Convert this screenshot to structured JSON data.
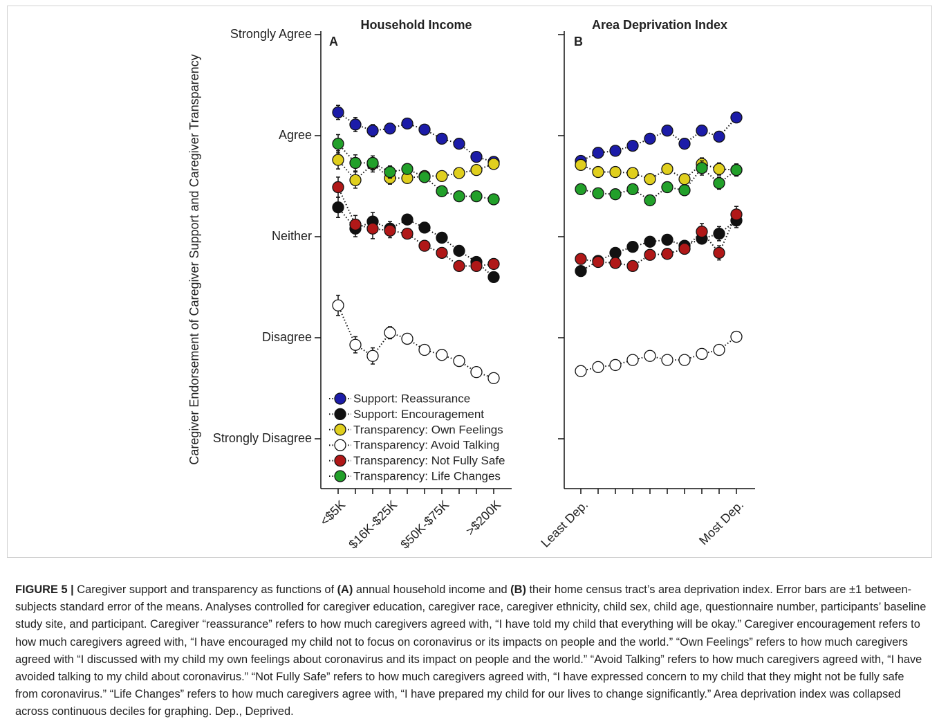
{
  "chart_data": [
    {
      "type": "line",
      "title": "Household Income",
      "panel": "A",
      "ylabel": "Caregiver Endorsement of Caregiver Support and Caregiver Transparency",
      "categories": [
        "<$5K",
        null,
        null,
        "$16K-$25K",
        null,
        null,
        "$50K-$75K",
        null,
        null,
        ">$200K"
      ],
      "ylim": [
        0.5,
        5
      ],
      "yticks": [
        {
          "value": 1,
          "label": "Strongly Disagree"
        },
        {
          "value": 2,
          "label": "Disagree"
        },
        {
          "value": 3,
          "label": "Neither"
        },
        {
          "value": 4,
          "label": "Agree"
        },
        {
          "value": 5,
          "label": "Strongly Agree"
        }
      ],
      "legend": "lower left",
      "series": [
        {
          "name": "Support: Reassurance",
          "color": "#1c1ca8",
          "values": [
            4.23,
            4.11,
            4.05,
            4.07,
            4.12,
            4.06,
            3.97,
            3.92,
            3.79,
            3.74
          ],
          "errors": [
            0.07,
            0.07,
            0.06,
            0.05,
            0.05,
            0.05,
            0.05,
            0.05,
            0.05,
            0.05
          ]
        },
        {
          "name": "Support: Encouragement",
          "color": "#111111",
          "values": [
            3.29,
            3.08,
            3.15,
            3.08,
            3.17,
            3.09,
            2.99,
            2.86,
            2.75,
            2.6
          ],
          "errors": [
            0.1,
            0.08,
            0.09,
            0.07,
            0.05,
            0.05,
            0.05,
            0.05,
            0.05,
            0.05
          ]
        },
        {
          "name": "Transparency: Own Feelings",
          "color": "#e0cf1e",
          "values": [
            3.76,
            3.56,
            3.72,
            3.58,
            3.58,
            3.6,
            3.6,
            3.63,
            3.66,
            3.72
          ],
          "errors": [
            0.09,
            0.08,
            0.08,
            0.06,
            0.05,
            0.05,
            0.05,
            0.05,
            0.05,
            0.05
          ]
        },
        {
          "name": "Transparency: Avoid Talking",
          "color": "#ffffff",
          "values": [
            2.32,
            1.93,
            1.82,
            2.05,
            1.99,
            1.88,
            1.83,
            1.77,
            1.66,
            1.6
          ],
          "errors": [
            0.1,
            0.08,
            0.08,
            0.06,
            0.05,
            0.05,
            0.05,
            0.05,
            0.05,
            0.05
          ]
        },
        {
          "name": "Transparency: Not Fully Safe",
          "color": "#b01818",
          "values": [
            3.49,
            3.12,
            3.08,
            3.06,
            3.03,
            2.91,
            2.84,
            2.71,
            2.71,
            2.73
          ],
          "errors": [
            0.1,
            0.09,
            0.1,
            0.07,
            0.05,
            0.05,
            0.05,
            0.05,
            0.05,
            0.05
          ]
        },
        {
          "name": "Transparency: Life Changes",
          "color": "#22a02a",
          "values": [
            3.92,
            3.73,
            3.73,
            3.64,
            3.67,
            3.59,
            3.45,
            3.4,
            3.4,
            3.37
          ],
          "errors": [
            0.09,
            0.08,
            0.07,
            0.06,
            0.05,
            0.05,
            0.05,
            0.05,
            0.05,
            0.05
          ]
        }
      ]
    },
    {
      "type": "line",
      "title": "Area Deprivation Index",
      "panel": "B",
      "categories": [
        "Least Dep.",
        null,
        null,
        null,
        null,
        null,
        null,
        null,
        null,
        "Most Dep."
      ],
      "ylim": [
        0.5,
        5
      ],
      "yticks": [
        1,
        2,
        3,
        4,
        5
      ],
      "series": [
        {
          "color": "#1c1ca8",
          "values": [
            3.75,
            3.83,
            3.85,
            3.9,
            3.97,
            4.05,
            3.92,
            4.05,
            3.99,
            4.18
          ],
          "errors": [
            0.05,
            0.05,
            0.05,
            0.05,
            0.05,
            0.05,
            0.05,
            0.05,
            0.05,
            0.05
          ]
        },
        {
          "color": "#111111",
          "values": [
            2.66,
            2.76,
            2.84,
            2.9,
            2.95,
            2.97,
            2.91,
            2.98,
            3.03,
            3.16
          ],
          "errors": [
            0.05,
            0.05,
            0.05,
            0.05,
            0.05,
            0.05,
            0.05,
            0.05,
            0.07,
            0.07
          ]
        },
        {
          "color": "#e0cf1e",
          "values": [
            3.71,
            3.64,
            3.64,
            3.63,
            3.57,
            3.67,
            3.57,
            3.72,
            3.67,
            3.66
          ],
          "errors": [
            0.05,
            0.05,
            0.05,
            0.05,
            0.05,
            0.05,
            0.05,
            0.06,
            0.06,
            0.06
          ]
        },
        {
          "color": "#ffffff",
          "values": [
            1.67,
            1.71,
            1.73,
            1.78,
            1.82,
            1.78,
            1.78,
            1.84,
            1.88,
            2.01
          ],
          "errors": [
            0.05,
            0.05,
            0.05,
            0.05,
            0.05,
            0.05,
            0.05,
            0.05,
            0.05,
            0.05
          ]
        },
        {
          "color": "#b01818",
          "values": [
            2.78,
            2.75,
            2.74,
            2.71,
            2.82,
            2.83,
            2.88,
            3.05,
            2.84,
            3.22
          ],
          "errors": [
            0.05,
            0.05,
            0.05,
            0.05,
            0.05,
            0.05,
            0.05,
            0.08,
            0.07,
            0.08
          ]
        },
        {
          "color": "#22a02a",
          "values": [
            3.47,
            3.43,
            3.42,
            3.47,
            3.36,
            3.49,
            3.46,
            3.68,
            3.53,
            3.66
          ],
          "errors": [
            0.05,
            0.05,
            0.05,
            0.05,
            0.05,
            0.05,
            0.05,
            0.07,
            0.06,
            0.06
          ]
        }
      ]
    }
  ],
  "caption": [
    {
      "text": "FIGURE 5 |",
      "bold": true
    },
    {
      "text": " Caregiver support and transparency as functions of "
    },
    {
      "text": "(A)",
      "bold": true
    },
    {
      "text": " annual household income and "
    },
    {
      "text": "(B)",
      "bold": true
    },
    {
      "text": " their home census tract’s area deprivation index. Error bars are ±1 between-subjects standard error of the means. Analyses controlled for caregiver education, caregiver race, caregiver ethnicity, child sex, child age, questionnaire number, participants’ baseline study site, and participant. Caregiver “reassurance” refers to how much caregivers agreed with, “I have told my child that everything will be okay.” Caregiver encouragement refers to how much caregivers agreed with, “I have encouraged my child not to focus on coronavirus or its impacts on people and the world.” “Own Feelings” refers to how much caregivers agreed with “I discussed with my child my own feelings about coronavirus and its impact on people and the world.” “Avoid Talking” refers to how much caregivers agreed with, “I have avoided talking to my child about coronavirus.” “Not Fully Safe” refers to how much caregivers agreed with, “I have expressed concern to my child that they might not be fully safe from coronavirus.” “Life Changes” refers to how much caregivers agree with, “I have prepared my child for our lives to change significantly.” Area deprivation index was collapsed across continuous deciles for graphing. Dep., Deprived."
    }
  ]
}
